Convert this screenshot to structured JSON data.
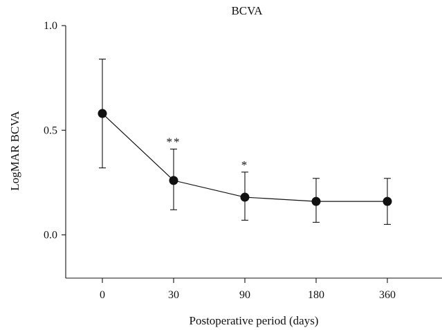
{
  "chart_data": {
    "type": "line",
    "title": "BCVA",
    "xlabel": "Postoperative period (days)",
    "ylabel": "LogMAR BCVA",
    "categories": [
      "0",
      "30",
      "90",
      "180",
      "360"
    ],
    "ylim": [
      -0.2,
      1.0
    ],
    "yticks": [
      0.0,
      0.5,
      1.0
    ],
    "ytick_labels": [
      "0.0",
      "0.5",
      "1.0"
    ],
    "grid": false,
    "series": [
      {
        "values": [
          0.58,
          0.26,
          0.18,
          0.16,
          0.16
        ],
        "error_upper": [
          0.84,
          0.41,
          0.3,
          0.27,
          0.27
        ],
        "error_lower": [
          0.32,
          0.12,
          0.07,
          0.06,
          0.05
        ]
      }
    ],
    "annotations": [
      {
        "category": "30",
        "text": "**"
      },
      {
        "category": "90",
        "text": "*"
      }
    ]
  }
}
